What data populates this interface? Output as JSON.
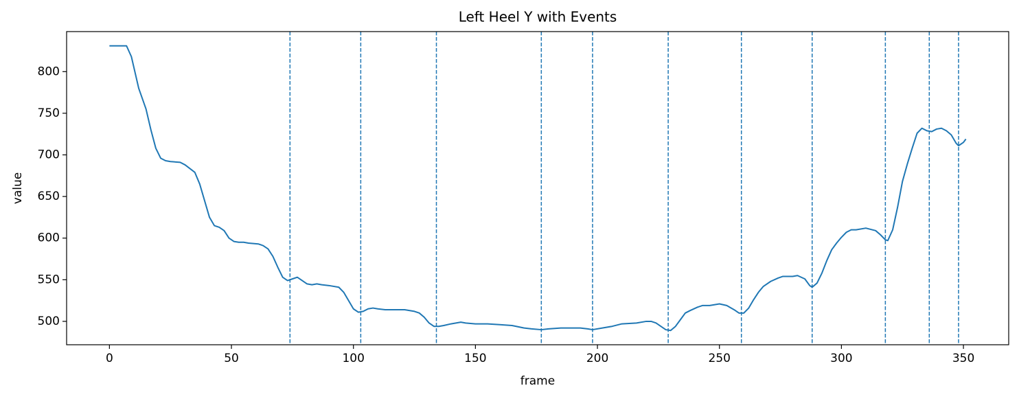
{
  "chart_data": {
    "type": "line",
    "title": "Left Heel Y with Events",
    "xlabel": "frame",
    "ylabel": "value",
    "color": "#1f77b4",
    "event_color": "#1f77b4",
    "x": [
      0,
      7,
      9,
      12,
      15,
      17,
      19,
      21,
      23,
      25,
      29,
      31,
      35,
      37,
      39,
      41,
      43,
      45,
      47,
      49,
      51,
      53,
      55,
      57,
      61,
      63,
      65,
      67,
      69,
      71,
      73,
      75,
      77,
      79,
      81,
      83,
      85,
      87,
      90,
      94,
      96,
      98,
      100,
      102,
      104,
      106,
      108,
      110,
      113,
      117,
      121,
      125,
      127,
      129,
      131,
      133,
      135,
      137,
      140,
      144,
      146,
      150,
      155,
      160,
      165,
      170,
      173,
      177,
      180,
      185,
      193,
      196,
      198,
      202,
      206,
      210,
      216,
      220,
      222,
      224,
      226,
      228,
      230,
      232,
      234,
      236,
      238,
      241,
      243,
      246,
      250,
      253,
      256,
      258,
      260,
      262,
      264,
      266,
      268,
      271,
      274,
      276,
      280,
      282,
      285,
      287,
      288,
      290,
      292,
      294,
      296,
      298,
      300,
      302,
      304,
      306,
      310,
      314,
      316,
      318,
      319,
      321,
      323,
      325,
      327,
      329,
      331,
      333,
      335,
      337,
      339,
      341,
      343,
      345,
      347,
      348,
      350,
      351
    ],
    "values": [
      831,
      831,
      818,
      780,
      755,
      730,
      708,
      696,
      693,
      692,
      691,
      688,
      679,
      665,
      645,
      625,
      615,
      613,
      609,
      600,
      596,
      595,
      595,
      594,
      593,
      591,
      587,
      578,
      565,
      553,
      549,
      551,
      553,
      549,
      545,
      544,
      545,
      544,
      543,
      541,
      535,
      525,
      515,
      511,
      512,
      515,
      516,
      515,
      514,
      514,
      514,
      512,
      510,
      505,
      498,
      494,
      494,
      495,
      497,
      499,
      498,
      497,
      497,
      496,
      495,
      492,
      491,
      490,
      491,
      492,
      492,
      491,
      490,
      492,
      494,
      497,
      498,
      500,
      500,
      498,
      494,
      490,
      489,
      494,
      502,
      510,
      513,
      517,
      519,
      519,
      521,
      519,
      514,
      510,
      510,
      516,
      526,
      535,
      542,
      548,
      552,
      554,
      554,
      555,
      551,
      543,
      541,
      546,
      558,
      573,
      586,
      594,
      601,
      607,
      610,
      610,
      612,
      609,
      604,
      598,
      597,
      610,
      637,
      668,
      689,
      708,
      726,
      732,
      729,
      728,
      731,
      732,
      729,
      724,
      714,
      711,
      715,
      719
    ],
    "events": [
      74,
      103,
      134,
      177,
      198,
      229,
      259,
      288,
      318,
      336,
      348
    ],
    "xlim": [
      -17.55,
      368.55
    ],
    "ylim": [
      471.9,
      848.1
    ],
    "xticks": [
      0,
      50,
      100,
      150,
      200,
      250,
      300,
      350
    ],
    "yticks": [
      500,
      550,
      600,
      650,
      700,
      750,
      800
    ],
    "grid": false
  }
}
